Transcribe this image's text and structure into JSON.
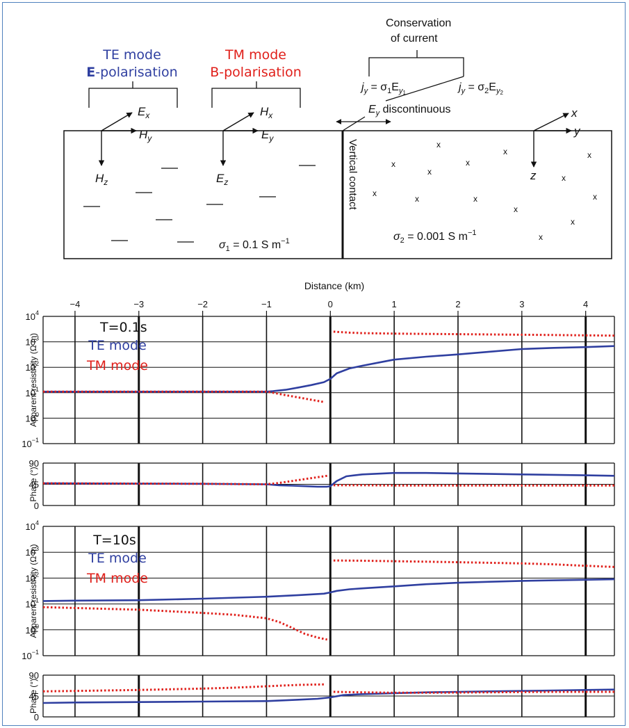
{
  "diagram": {
    "te": {
      "title": "TE mode",
      "subtitle_bold": "E",
      "subtitle_rest": "-polarisation",
      "color": "#2f3fa0"
    },
    "tm": {
      "title": "TM mode",
      "subtitle": "B-polarisation",
      "color": "#e0201b"
    },
    "conservation": {
      "line1": "Conservation",
      "line2": "of current"
    },
    "current_left": {
      "j": "j",
      "sub": "y",
      "eq": " = σ",
      "sub1": "1",
      "E": "E",
      "sub2": "y",
      "sub3": "1"
    },
    "current_right": {
      "j": "j",
      "sub": "y",
      "eq": " = σ",
      "sub1": "2",
      "E": "E",
      "sub2": "y",
      "sub3": "2"
    },
    "discontinuous": {
      "E": "E",
      "sub": "y",
      "text": " discontinuous"
    },
    "te_axes": {
      "ex": "E",
      "ex_sub": "x",
      "hy": "H",
      "hy_sub": "y",
      "hz": "H",
      "hz_sub": "z"
    },
    "tm_axes": {
      "hx": "H",
      "hx_sub": "x",
      "ey": "E",
      "ey_sub": "y",
      "ez": "E",
      "ez_sub": "z"
    },
    "coord_axes": {
      "x": "x",
      "y": "y",
      "z": "z"
    },
    "contact_label": "Vertical contact",
    "sigma1": {
      "s": "σ",
      "sub": "1",
      "val": " = 0.1 S m",
      "exp": "−1"
    },
    "sigma2": {
      "s": "σ",
      "sub": "2",
      "val": " = 0.001 S m",
      "exp": "−1"
    },
    "cross_symbol": "x"
  },
  "axis": {
    "xlabel": "Distance (km)",
    "xticks": [
      "−4",
      "−3",
      "−2",
      "−1",
      "0",
      "1",
      "2",
      "3",
      "4"
    ],
    "res_ylabel": "Apparent resistivity (Ω m)",
    "phase_ylabel": "Phase (°)",
    "res_ticks": [
      {
        "b": "10",
        "e": "4"
      },
      {
        "b": "10",
        "e": "3"
      },
      {
        "b": "10",
        "e": "2"
      },
      {
        "b": "10",
        "e": "1"
      },
      {
        "b": "10",
        "e": "0"
      },
      {
        "b": "10",
        "e": "−1"
      }
    ],
    "phase_ticks": [
      "90",
      "45",
      "0"
    ]
  },
  "chart_data": [
    {
      "type": "line",
      "period": "T=0.1s",
      "xlabel": "Distance (km)",
      "ylabel": "Apparent resistivity (Ω m)",
      "xlim": [
        -4.5,
        4.45
      ],
      "ylim": [
        0.1,
        10000
      ],
      "yscale": "log",
      "grid": true,
      "series": [
        {
          "name": "TE mode",
          "style": "solid",
          "color": "#2f3fa0",
          "x": [
            -4.5,
            -3,
            -2,
            -1,
            -0.9,
            -0.7,
            -0.5,
            -0.3,
            -0.1,
            0,
            0.1,
            0.3,
            0.5,
            0.8,
            1,
            1.5,
            2,
            2.5,
            3,
            3.5,
            4,
            4.45
          ],
          "y": [
            11,
            11,
            11,
            11,
            11.5,
            13,
            16,
            20,
            26,
            35,
            58,
            90,
            115,
            160,
            200,
            260,
            320,
            410,
            520,
            580,
            620,
            680
          ]
        },
        {
          "name": "TM mode",
          "style": "dotted",
          "color": "#e0201b",
          "x": [
            -4.5,
            -3,
            -2,
            -1,
            -0.9,
            -0.7,
            -0.5,
            -0.3,
            -0.1
          ],
          "y": [
            11,
            11,
            11,
            11,
            10,
            8,
            6.5,
            5.3,
            4.3
          ]
        },
        {
          "name": "TM mode",
          "style": "dotted",
          "color": "#e0201b",
          "x": [
            0.05,
            0.3,
            0.5,
            1,
            1.5,
            2,
            2.5,
            3,
            3.5,
            4,
            4.45
          ],
          "y": [
            2500,
            2300,
            2200,
            2100,
            2050,
            2000,
            1950,
            1900,
            1850,
            1800,
            1750
          ]
        }
      ]
    },
    {
      "type": "line",
      "period": "T=0.1s",
      "ylabel": "Phase (°)",
      "xlim": [
        -4.5,
        4.45
      ],
      "ylim": [
        0,
        90
      ],
      "grid": true,
      "series": [
        {
          "name": "TE mode",
          "style": "solid",
          "color": "#2f3fa0",
          "x": [
            -4.5,
            -3,
            -2,
            -1,
            -0.8,
            -0.6,
            -0.4,
            -0.2,
            -0.05,
            0,
            0.1,
            0.25,
            0.5,
            1,
            1.5,
            2,
            2.5,
            3,
            3.5,
            4,
            4.45
          ],
          "y": [
            47,
            46.5,
            46,
            45,
            43,
            42,
            41,
            40,
            40,
            41,
            52,
            62,
            66,
            69,
            69,
            68,
            67,
            66,
            65,
            64,
            63
          ]
        },
        {
          "name": "TM mode",
          "style": "dotted",
          "color": "#e0201b",
          "x": [
            -4.5,
            -3,
            -2,
            -1,
            -0.8,
            -0.6,
            -0.4,
            -0.2,
            -0.05
          ],
          "y": [
            47,
            46.5,
            46,
            45,
            48,
            52,
            56,
            60,
            63
          ]
        },
        {
          "name": "TM mode",
          "style": "dotted",
          "color": "#e0201b",
          "x": [
            0.05,
            0.5,
            1,
            1.5,
            2,
            2.5,
            3,
            3.5,
            4,
            4.45
          ],
          "y": [
            43,
            43,
            42.5,
            42.5,
            42.5,
            42.5,
            42.5,
            42.5,
            42.5,
            42.5
          ]
        }
      ]
    },
    {
      "type": "line",
      "period": "T=10s",
      "xlabel": "Distance (km)",
      "ylabel": "Apparent resistivity (Ω m)",
      "xlim": [
        -4.5,
        4.45
      ],
      "ylim": [
        0.1,
        10000
      ],
      "yscale": "log",
      "grid": true,
      "series": [
        {
          "name": "TE mode",
          "style": "solid",
          "color": "#2f3fa0",
          "x": [
            -4.5,
            -4,
            -3,
            -2,
            -1,
            -0.5,
            -0.1,
            0,
            0.1,
            0.3,
            0.5,
            1,
            1.5,
            2,
            2.5,
            3,
            3.5,
            4,
            4.45
          ],
          "y": [
            13,
            13.5,
            14,
            16,
            19,
            22,
            25,
            28,
            32,
            37,
            40,
            48,
            58,
            66,
            72,
            78,
            82,
            86,
            90
          ]
        },
        {
          "name": "TM mode",
          "style": "dotted",
          "color": "#e0201b",
          "x": [
            -4.5,
            -4,
            -3,
            -2,
            -1.5,
            -1,
            -0.8,
            -0.6,
            -0.4,
            -0.2,
            -0.05
          ],
          "y": [
            7.5,
            7,
            6,
            4.5,
            3.8,
            2.8,
            2,
            1.2,
            0.7,
            0.5,
            0.42
          ]
        },
        {
          "name": "TM mode",
          "style": "dotted",
          "color": "#e0201b",
          "x": [
            0.05,
            0.5,
            1,
            1.5,
            2,
            2.5,
            3,
            3.5,
            4,
            4.45
          ],
          "y": [
            480,
            470,
            450,
            430,
            410,
            390,
            370,
            340,
            300,
            270
          ]
        }
      ]
    },
    {
      "type": "line",
      "period": "T=10s",
      "ylabel": "Phase (°)",
      "xlim": [
        -4.5,
        4.45
      ],
      "ylim": [
        0,
        90
      ],
      "grid": true,
      "series": [
        {
          "name": "TE mode",
          "style": "solid",
          "color": "#2f3fa0",
          "x": [
            -4.5,
            -4,
            -3,
            -2,
            -1,
            -0.5,
            -0.2,
            0,
            0.2,
            0.5,
            1,
            1.5,
            2,
            2.5,
            3,
            3.5,
            4,
            4.45
          ],
          "y": [
            30,
            31,
            32,
            33,
            34,
            37,
            39,
            42,
            47,
            49,
            51,
            53,
            54,
            55,
            56,
            57,
            58,
            59
          ]
        },
        {
          "name": "TM mode",
          "style": "dotted",
          "color": "#e0201b",
          "x": [
            -4.5,
            -4,
            -3,
            -2,
            -1.5,
            -1,
            -0.5,
            -0.1
          ],
          "y": [
            55,
            56,
            58,
            61,
            63,
            66,
            69,
            70
          ]
        },
        {
          "name": "TM mode",
          "style": "dotted",
          "color": "#e0201b",
          "x": [
            0.05,
            0.5,
            1,
            1.5,
            2,
            2.5,
            3,
            3.5,
            4,
            4.45
          ],
          "y": [
            54,
            53,
            52,
            52,
            52.5,
            53,
            53.5,
            54,
            54,
            54
          ]
        }
      ]
    }
  ]
}
